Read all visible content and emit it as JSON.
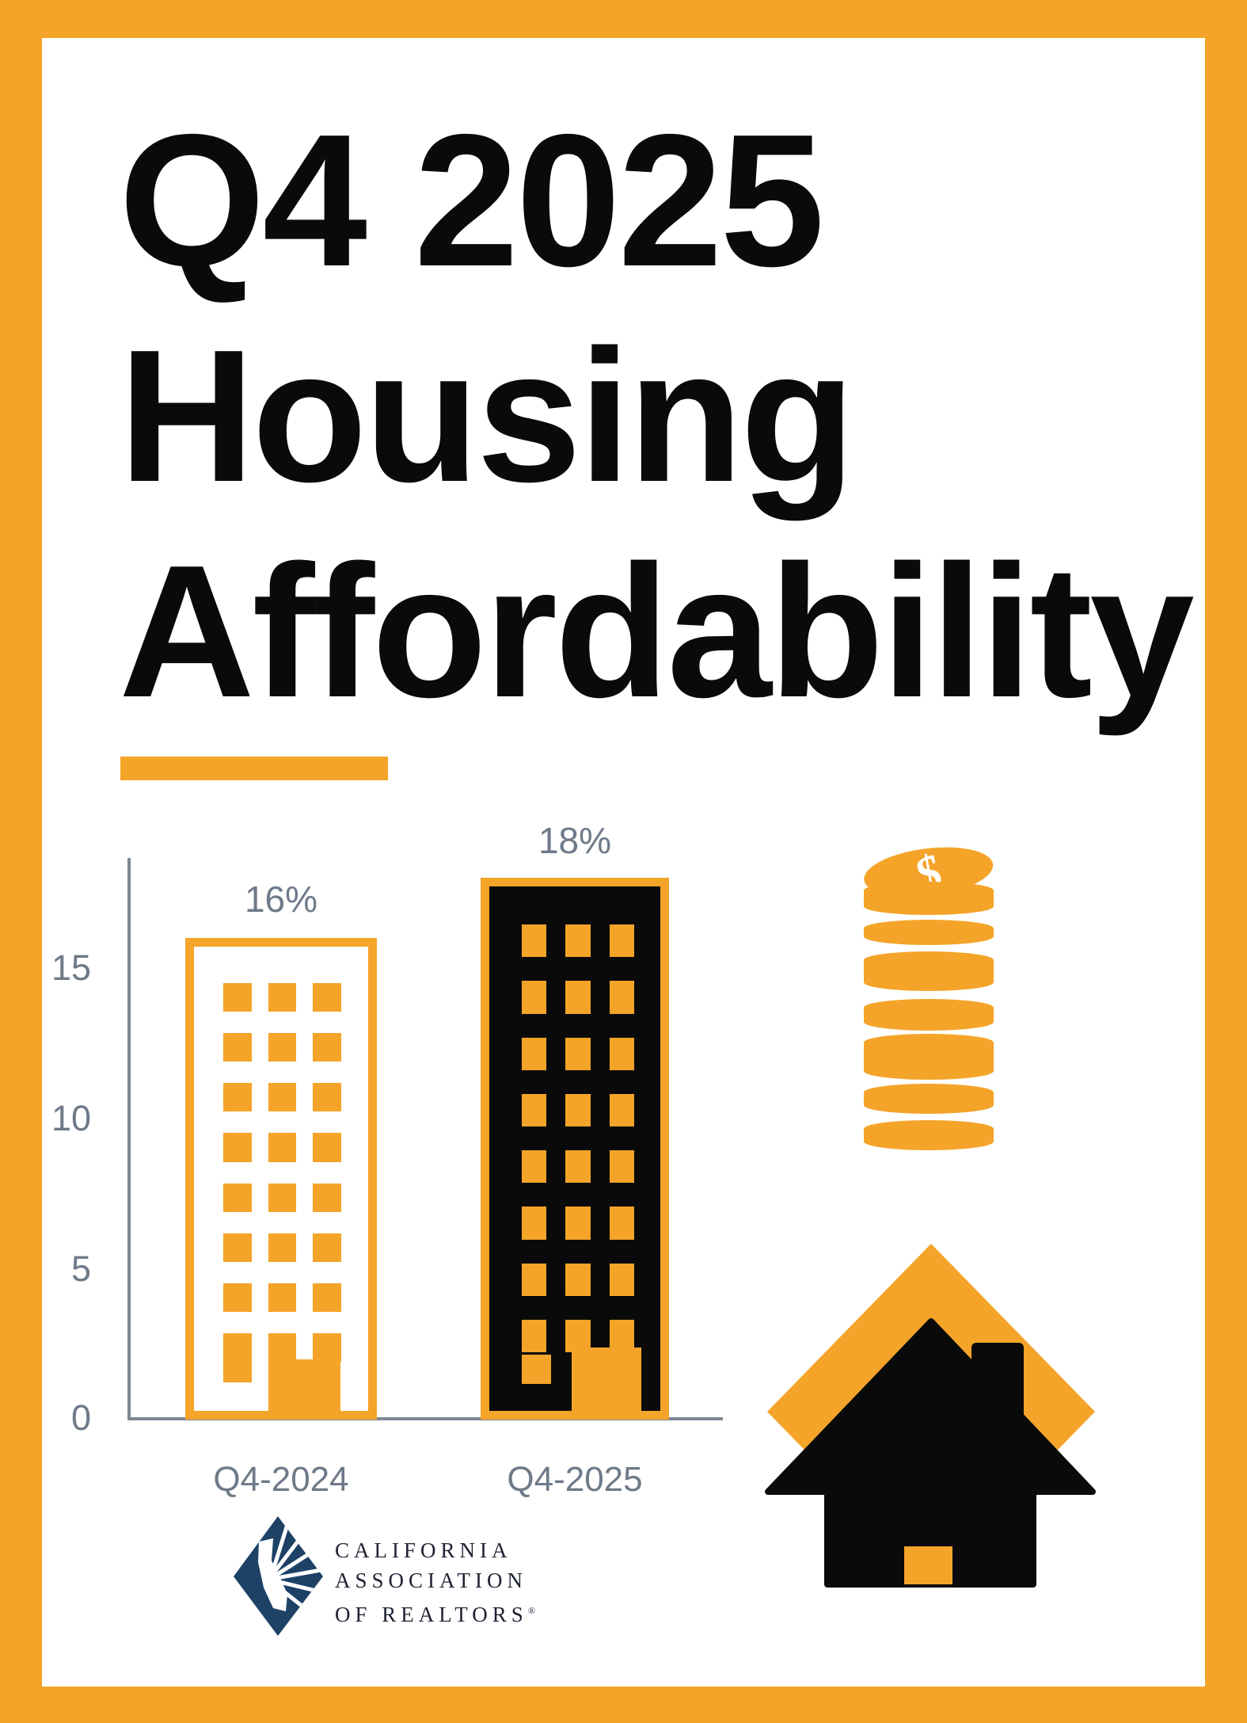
{
  "colors": {
    "orange": "#F4A428",
    "ink": "#0A0A0A",
    "gray": "#6E7A89",
    "axis": "#7E8894",
    "navy": "#1D4266",
    "logo-ink": "#1F2233"
  },
  "title": {
    "line1": "Q4 2025",
    "line2": "Housing",
    "line3": "Affordability"
  },
  "chart_data": {
    "type": "bar",
    "title": "Q4 2025 Housing Affordability",
    "categories": [
      "Q4-2024",
      "Q4-2025"
    ],
    "values": [
      16,
      18
    ],
    "value_labels": [
      "16%",
      "18%"
    ],
    "unit": "%",
    "xlabel": "",
    "ylabel": "",
    "ylim": [
      0,
      19
    ],
    "yticks": [
      0,
      5,
      10,
      15
    ],
    "ytick_labels": [
      "0",
      "5",
      "10",
      "15"
    ],
    "grid": false,
    "legend": false,
    "bar_styles": [
      {
        "fill": "#ffffff",
        "outline": "#F4A428",
        "windows": "#F4A428"
      },
      {
        "fill": "#0A0A0A",
        "outline": "#F4A428",
        "windows": "#F4A428"
      }
    ],
    "buildings": [
      {
        "floors": 8,
        "windows_per_floor": 3
      },
      {
        "floors": 8,
        "windows_per_floor": 3
      }
    ]
  },
  "icons": {
    "dollar_symbol": "$",
    "coin_stack": "coin-stack-icon",
    "house": "house-icon"
  },
  "logo": {
    "line1": "CALIFORNIA",
    "line2": "ASSOCIATION",
    "line3": "OF REALTORS",
    "registered": "®"
  }
}
